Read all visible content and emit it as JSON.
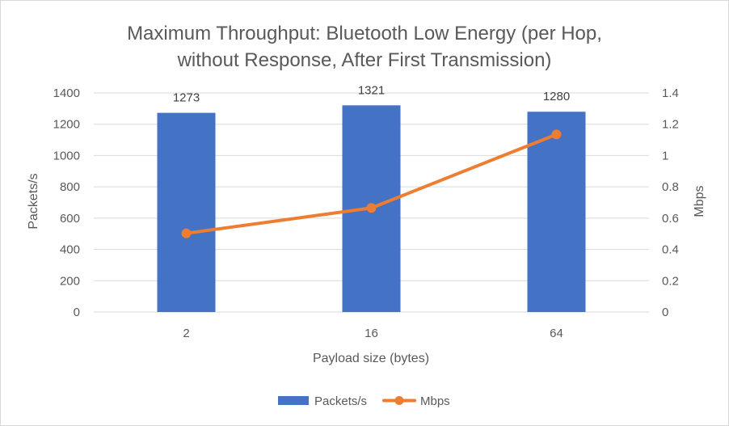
{
  "chart_data": {
    "type": "bar",
    "title_lines": [
      "Maximum Throughput: Bluetooth Low Energy (per Hop,",
      "without Response, After First Transmission)"
    ],
    "categories": [
      "2",
      "16",
      "64"
    ],
    "xlabel": "Payload size (bytes)",
    "ylabel": "Packets/s",
    "y2label": "Mbps",
    "ylim": [
      0,
      1400
    ],
    "y_ticks": [
      "0",
      "200",
      "400",
      "600",
      "800",
      "1000",
      "1200",
      "1400"
    ],
    "y2lim": [
      0,
      1.4
    ],
    "y2_ticks": [
      "0",
      "0.2",
      "0.4",
      "0.6",
      "0.8",
      "1",
      "1.2",
      "1.4"
    ],
    "grid": true,
    "legend_position": "bottom",
    "series": [
      {
        "name": "Packets/s",
        "type": "bar",
        "axis": "left",
        "color": "#4472c4",
        "values": [
          1273,
          1321,
          1280
        ],
        "labels": [
          "1273",
          "1321",
          "1280"
        ]
      },
      {
        "name": "Mbps",
        "type": "line",
        "axis": "right",
        "color": "#ed7d31",
        "values": [
          0.503,
          0.665,
          1.135
        ]
      }
    ]
  }
}
